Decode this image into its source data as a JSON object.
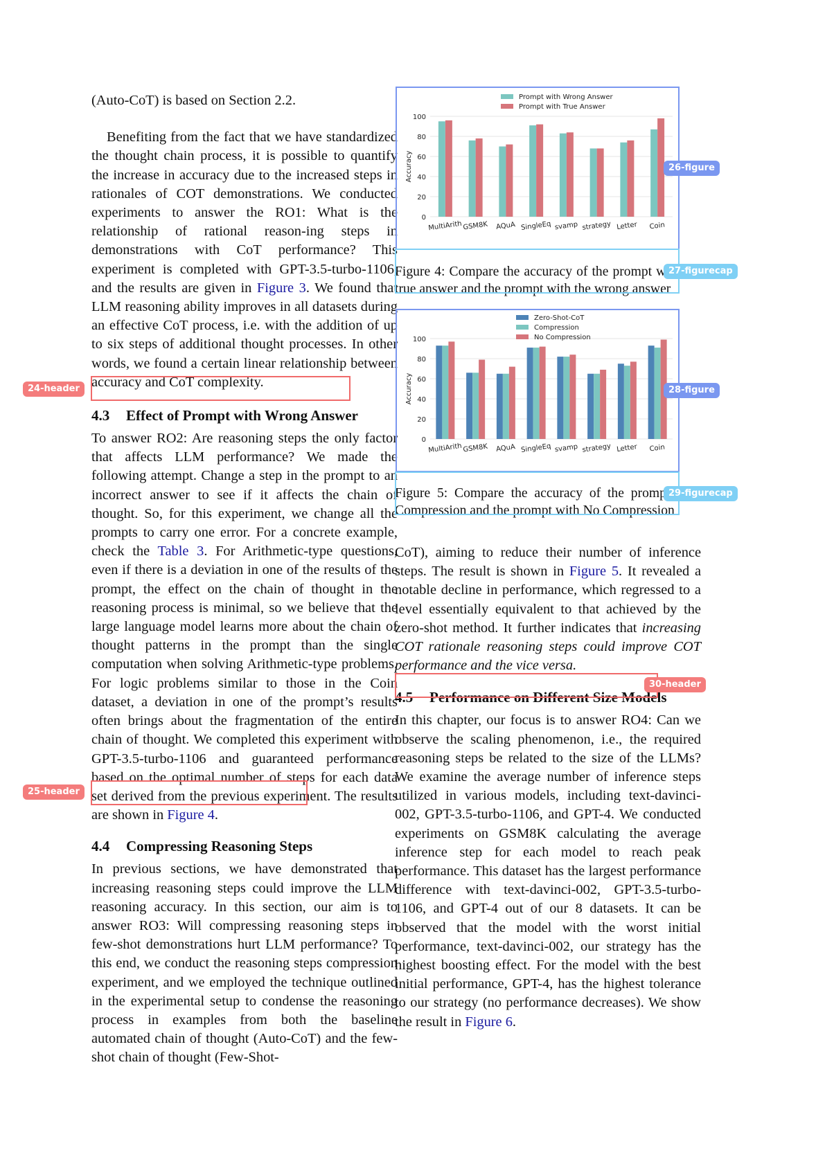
{
  "left_column": {
    "p1": "(Auto-CoT) is based on Section 2.2.",
    "p2_before": "Benefiting from the fact that we have standardized the thought chain process, it is possible to quantify the increase in accuracy due to the increased steps in rationales of COT demonstrations. We conducted experiments to answer the RO1: What is the relationship of rational reason-ing steps in demonstrations with CoT performance? This experiment is completed with GPT-3.5-turbo-1106, and the results are given in ",
    "p2_link": "Figure 3",
    "p2_after": ". We found that LLM reasoning ability improves in all datasets during an effective CoT process, i.e. with the addition of up to six steps of additional thought processes. In other words, we found a certain linear relationship between accuracy and CoT complexity.",
    "h43_num": "4.3",
    "h43_title": "Effect of Prompt with Wrong Answer",
    "p3_before": "To answer RO2: Are reasoning steps the only factor that affects LLM performance? We made the following attempt. Change a step in the prompt to an incorrect answer to see if it affects the chain of thought. So, for this experiment, we change all the prompts to carry one error. For a concrete example, check the ",
    "p3_link": "Table 3",
    "p3_after": ". For Arithmetic-type questions, even if there is a deviation in one of the results of the prompt, the effect on the chain of thought in the reasoning process is minimal, so we believe that the large language model learns more about the chain of thought patterns in the prompt than the single computation when solving Arithmetic-type problems. For logic problems similar to those in the Coin dataset, a deviation in one of the prompt’s results often brings about the fragmentation of the entire chain of thought. We completed this experiment with GPT-3.5-turbo-1106 and guaranteed performance based on the optimal number of steps for each data set derived from the previous experiment. The results are shown in ",
    "p3_link2": "Figure 4",
    "p3_end": ".",
    "h44_num": "4.4",
    "h44_title": "Compressing Reasoning Steps",
    "p4": "In previous sections, we have demonstrated that increasing reasoning steps could improve the LLM reasoning accuracy. In this section, our aim is to answer RO3: Will compressing reasoning steps in few-shot demonstrations hurt LLM performance? To this end, we conduct the reasoning steps compression experiment, and we employed the technique outlined in the experimental setup to condense the reasoning process in examples from both the baseline automated chain of thought (Auto-CoT) and the few-shot chain of thought (Few-Shot-"
  },
  "right_column": {
    "p5_before": "CoT), aiming to reduce their number of inference steps. The result is shown in ",
    "p5_link": "Figure 5",
    "p5_mid": ". It revealed a notable decline in performance, which regressed to a level essentially equivalent to that achieved by the zero-shot method. It further indicates that ",
    "p5_em": "increasing COT rationale reasoning steps could improve COT performance and the vice versa.",
    "h45_num": "4.5",
    "h45_title": "Performance on Different Size Models",
    "p6_before": "In this chapter, our focus is to answer RO4: Can we observe the scaling phenomenon, i.e., the required reasoning steps be related to the size of the LLMs? We examine the average number of inference steps utilized in various models, including text-davinci-002, GPT-3.5-turbo-1106, and GPT-4. We conducted experiments on GSM8K calculating the average inference step for each model to reach peak performance. This dataset has the largest performance difference with text-davinci-002, GPT-3.5-turbo-1106, and GPT-4 out of our 8 datasets. It can be observed that the model with the worst initial performance, text-davinci-002, our strategy has the highest boosting effect. For the model with the best initial performance, GPT-4, has the highest tolerance to our strategy (no performance decreases). We show the result in ",
    "p6_link": "Figure 6",
    "p6_end": "."
  },
  "captions": {
    "fig4": "Figure 4: Compare the accuracy of the prompt with the true answer and the prompt with the wrong answer",
    "fig5": "Figure 5: Compare the accuracy of the prompt with Compression and the prompt with No Compression"
  },
  "annotations": {
    "tag24": "24-header",
    "tag25": "25-header",
    "tag26": "26-figure",
    "tag27": "27-figurecap",
    "tag28": "28-figure",
    "tag29": "29-figurecap",
    "tag30": "30-header"
  },
  "colors": {
    "teal": "#7cc6c0",
    "red": "#d6757b",
    "blue": "#4d83b6",
    "ann_red": "#f06a6a",
    "ann_blue": "#7a97f0",
    "ann_cyan": "#7fd0f5"
  },
  "chart_data": [
    {
      "type": "bar",
      "ylabel": "Accuracy",
      "ylim": [
        0,
        100
      ],
      "yticks": [
        0,
        20,
        40,
        60,
        80,
        100
      ],
      "legend_position": "top-center",
      "categories": [
        "MultiArith",
        "GSM8K",
        "AQuA",
        "SingleEq",
        "svamp",
        "strategy",
        "Letter",
        "Coin"
      ],
      "series": [
        {
          "name": "Prompt with Wrong Answer",
          "color": "#7cc6c0",
          "values": [
            95,
            76,
            70,
            91,
            83,
            68,
            74,
            87
          ]
        },
        {
          "name": "Prompt with True Answer",
          "color": "#d6757b",
          "values": [
            96,
            78,
            72,
            92,
            84,
            68,
            76,
            98
          ]
        }
      ]
    },
    {
      "type": "bar",
      "ylabel": "Accuracy",
      "ylim": [
        0,
        100
      ],
      "yticks": [
        0,
        20,
        40,
        60,
        80,
        100
      ],
      "legend_position": "top-center",
      "categories": [
        "MultiArith",
        "GSM8K",
        "AQuA",
        "SingleEq",
        "svamp",
        "strategy",
        "Letter",
        "Coin"
      ],
      "series": [
        {
          "name": "Zero-Shot-CoT",
          "color": "#4d83b6",
          "values": [
            93,
            66,
            65,
            91,
            82,
            65,
            75,
            93
          ]
        },
        {
          "name": "Compression",
          "color": "#7cc6c0",
          "values": [
            93,
            66,
            65,
            91,
            82,
            65,
            73,
            91
          ]
        },
        {
          "name": "No Compression",
          "color": "#d6757b",
          "values": [
            97,
            79,
            72,
            92,
            84,
            69,
            77,
            99
          ]
        }
      ]
    }
  ]
}
